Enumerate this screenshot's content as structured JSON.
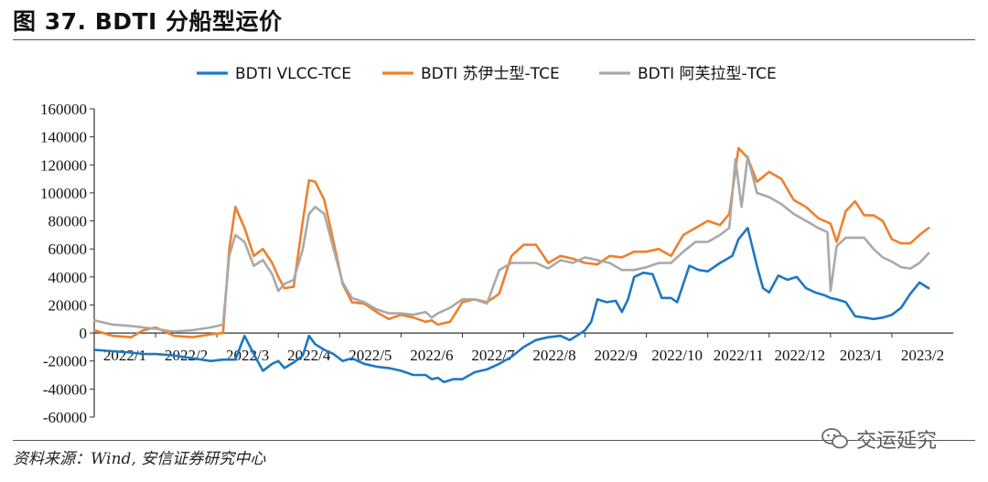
{
  "figure_title": "图 37. BDTI 分船型运价",
  "source_note": "资料来源：Wind, 安信证券研究中心",
  "watermark_text": "交运延究",
  "chart_data": {
    "type": "line",
    "title": "图 37. BDTI 分船型运价",
    "xlabel": "",
    "ylabel": "",
    "ylim": [
      -60000,
      160000
    ],
    "yticks": [
      -60000,
      -40000,
      -20000,
      0,
      20000,
      40000,
      60000,
      80000,
      100000,
      120000,
      140000,
      160000
    ],
    "ytick_labels": [
      "-60000",
      "-40000",
      "-20000",
      "0",
      "20000",
      "40000",
      "60000",
      "80000",
      "100000",
      "120000",
      "140000",
      "160000"
    ],
    "xlim": [
      0,
      14
    ],
    "categories": [
      "2022/1",
      "2022/2",
      "2022/3",
      "2022/4",
      "2022/5",
      "2022/6",
      "2022/7",
      "2022/8",
      "2022/9",
      "2022/10",
      "2022/11",
      "2022/12",
      "2023/1",
      "2023/2"
    ],
    "legend_position": "top",
    "grid": false,
    "series": [
      {
        "name": "BDTI VLCC-TCE",
        "color": "#1f77c4",
        "x": [
          0.0,
          0.3,
          0.6,
          0.8,
          1.0,
          1.3,
          1.6,
          1.9,
          2.1,
          2.3,
          2.45,
          2.6,
          2.75,
          2.9,
          3.0,
          3.1,
          3.25,
          3.4,
          3.5,
          3.6,
          3.75,
          3.9,
          4.05,
          4.2,
          4.4,
          4.6,
          4.8,
          5.0,
          5.2,
          5.4,
          5.5,
          5.6,
          5.7,
          5.85,
          6.0,
          6.2,
          6.4,
          6.6,
          6.8,
          7.0,
          7.2,
          7.4,
          7.6,
          7.75,
          7.9,
          8.0,
          8.1,
          8.2,
          8.35,
          8.5,
          8.6,
          8.7,
          8.8,
          8.95,
          9.1,
          9.25,
          9.4,
          9.5,
          9.6,
          9.7,
          9.85,
          10.0,
          10.2,
          10.4,
          10.5,
          10.65,
          10.8,
          10.9,
          11.0,
          11.15,
          11.3,
          11.45,
          11.6,
          11.75,
          11.9,
          12.0,
          12.1,
          12.25,
          12.4,
          12.55,
          12.7,
          12.85,
          13.0,
          13.15,
          13.3,
          13.45,
          13.6
        ],
        "values": [
          -12000,
          -13000,
          -14000,
          -15000,
          -15000,
          -16000,
          -18000,
          -20000,
          -19000,
          -19000,
          -2000,
          -15000,
          -27000,
          -22000,
          -20000,
          -25000,
          -21000,
          -16000,
          -2000,
          -8000,
          -12000,
          -15000,
          -20000,
          -18000,
          -22000,
          -24000,
          -25000,
          -27000,
          -30000,
          -30000,
          -33000,
          -32000,
          -35000,
          -33000,
          -33000,
          -28000,
          -26000,
          -22000,
          -17000,
          -10000,
          -5000,
          -3000,
          -2000,
          -5000,
          -1000,
          2000,
          8000,
          24000,
          22000,
          23000,
          15000,
          24000,
          40000,
          43000,
          42000,
          25000,
          25000,
          22000,
          35000,
          48000,
          45000,
          44000,
          50000,
          55000,
          67000,
          75000,
          48000,
          32000,
          29000,
          41000,
          38000,
          40000,
          32000,
          29000,
          27000,
          25000,
          24000,
          22000,
          12000,
          11000,
          10000,
          11000,
          13000,
          18000,
          28000,
          36000,
          32000
        ]
      },
      {
        "name": "BDTI 苏伊士型-TCE",
        "color": "#f07f2b",
        "x": [
          0.0,
          0.3,
          0.6,
          0.8,
          1.0,
          1.3,
          1.6,
          1.9,
          2.1,
          2.2,
          2.3,
          2.45,
          2.6,
          2.75,
          2.9,
          3.0,
          3.1,
          3.25,
          3.4,
          3.5,
          3.6,
          3.75,
          3.9,
          4.05,
          4.2,
          4.4,
          4.6,
          4.8,
          5.0,
          5.2,
          5.4,
          5.5,
          5.6,
          5.8,
          6.0,
          6.2,
          6.4,
          6.6,
          6.8,
          7.0,
          7.2,
          7.4,
          7.6,
          7.8,
          8.0,
          8.2,
          8.4,
          8.6,
          8.8,
          9.0,
          9.2,
          9.4,
          9.6,
          9.8,
          10.0,
          10.2,
          10.35,
          10.5,
          10.65,
          10.8,
          11.0,
          11.2,
          11.4,
          11.6,
          11.8,
          12.0,
          12.1,
          12.25,
          12.4,
          12.55,
          12.7,
          12.85,
          13.0,
          13.15,
          13.3,
          13.45,
          13.6
        ],
        "values": [
          2000,
          -2000,
          -3000,
          2000,
          4000,
          -2000,
          -3000,
          -1000,
          0,
          60000,
          90000,
          75000,
          55000,
          60000,
          50000,
          40000,
          32000,
          33000,
          80000,
          109000,
          108000,
          95000,
          65000,
          35000,
          22000,
          21000,
          15000,
          10000,
          13000,
          11000,
          8000,
          9000,
          6000,
          8000,
          22000,
          24000,
          22000,
          28000,
          55000,
          63000,
          63000,
          50000,
          55000,
          53000,
          50000,
          49000,
          55000,
          54000,
          58000,
          58000,
          60000,
          55000,
          70000,
          75000,
          80000,
          77000,
          85000,
          132000,
          125000,
          108000,
          115000,
          110000,
          95000,
          90000,
          82000,
          78000,
          65000,
          87000,
          94000,
          84000,
          84000,
          80000,
          67000,
          64000,
          64000,
          70000,
          75000
        ]
      },
      {
        "name": "BDTI 阿芙拉型-TCE",
        "color": "#a9a9a9",
        "x": [
          0.0,
          0.3,
          0.6,
          0.8,
          1.0,
          1.3,
          1.6,
          1.9,
          2.1,
          2.2,
          2.3,
          2.45,
          2.6,
          2.75,
          2.9,
          3.0,
          3.1,
          3.25,
          3.4,
          3.5,
          3.6,
          3.75,
          3.9,
          4.05,
          4.2,
          4.4,
          4.6,
          4.8,
          5.0,
          5.2,
          5.4,
          5.5,
          5.6,
          5.8,
          6.0,
          6.2,
          6.4,
          6.6,
          6.8,
          7.0,
          7.2,
          7.4,
          7.6,
          7.8,
          8.0,
          8.2,
          8.4,
          8.6,
          8.8,
          9.0,
          9.2,
          9.4,
          9.6,
          9.8,
          10.0,
          10.2,
          10.35,
          10.45,
          10.55,
          10.65,
          10.8,
          11.0,
          11.2,
          11.4,
          11.6,
          11.8,
          11.95,
          12.0,
          12.1,
          12.25,
          12.4,
          12.55,
          12.7,
          12.85,
          13.0,
          13.15,
          13.3,
          13.45,
          13.6
        ],
        "values": [
          9000,
          6000,
          5000,
          4000,
          3000,
          1000,
          2000,
          4000,
          6000,
          55000,
          70000,
          65000,
          48000,
          52000,
          42000,
          30000,
          35000,
          38000,
          60000,
          85000,
          90000,
          85000,
          60000,
          36000,
          25000,
          22000,
          17000,
          14000,
          14000,
          13000,
          15000,
          11000,
          14000,
          18000,
          24000,
          24000,
          21000,
          45000,
          50000,
          50000,
          50000,
          46000,
          52000,
          50000,
          54000,
          52000,
          50000,
          45000,
          45000,
          47000,
          50000,
          50000,
          58000,
          65000,
          65000,
          70000,
          75000,
          124000,
          90000,
          126000,
          100000,
          97000,
          92000,
          85000,
          80000,
          75000,
          72000,
          30000,
          62000,
          68000,
          68000,
          68000,
          60000,
          54000,
          51000,
          47000,
          46000,
          50000,
          57000
        ]
      }
    ]
  }
}
